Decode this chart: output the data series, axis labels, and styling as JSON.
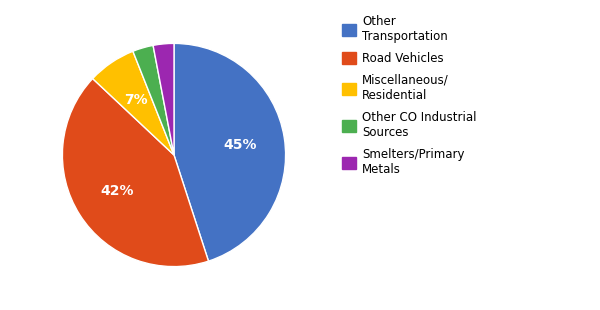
{
  "labels": [
    "Other Transportation",
    "Road Vehicles",
    "Miscellaneous/ Residential",
    "Other CO Industrial Sources",
    "Smelters/Primary Metals"
  ],
  "values": [
    45,
    42,
    7,
    3,
    3
  ],
  "colors": [
    "#4472C4",
    "#E04B1A",
    "#FFC000",
    "#4CAF50",
    "#9C27B0"
  ],
  "startangle": 90,
  "legend_labels": [
    "Other\nTransportation",
    "Road Vehicles",
    "Miscellaneous/\nResidential",
    "Other CO Industrial\nSources",
    "Smelters/Primary\nMetals"
  ],
  "figsize": [
    6.0,
    3.1
  ],
  "dpi": 100
}
